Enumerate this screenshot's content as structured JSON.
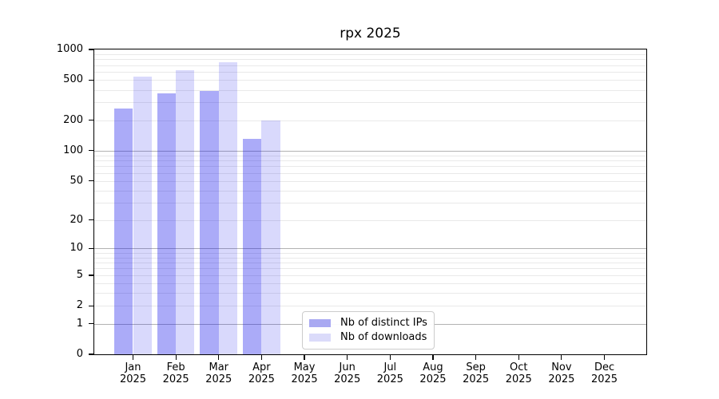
{
  "title": "rpx 2025",
  "xaxis": {
    "months": [
      "Jan",
      "Feb",
      "Mar",
      "Apr",
      "May",
      "Jun",
      "Jul",
      "Aug",
      "Sep",
      "Oct",
      "Nov",
      "Dec"
    ],
    "year": "2025"
  },
  "chart_data": {
    "type": "bar",
    "title": "rpx 2025",
    "categories": [
      "Jan 2025",
      "Feb 2025",
      "Mar 2025",
      "Apr 2025",
      "May 2025",
      "Jun 2025",
      "Jul 2025",
      "Aug 2025",
      "Sep 2025",
      "Oct 2025",
      "Nov 2025",
      "Dec 2025"
    ],
    "series": [
      {
        "name": "Nb of distinct IPs",
        "values": [
          260,
          370,
          390,
          130,
          null,
          null,
          null,
          null,
          null,
          null,
          null,
          null
        ],
        "color": "#a9a9f2",
        "fill": "rgba(13,13,235,0.35)"
      },
      {
        "name": "Nb of downloads",
        "values": [
          540,
          630,
          750,
          200,
          null,
          null,
          null,
          null,
          null,
          null,
          null,
          null
        ],
        "color": "#dbdbfa",
        "fill": "rgba(13,13,235,0.155)"
      }
    ],
    "yscale": "log(1+x)",
    "yticks": [
      0,
      1,
      2,
      5,
      10,
      20,
      50,
      100,
      200,
      500,
      1000
    ],
    "ylim": [
      0,
      1000
    ],
    "xlabel": "",
    "ylabel": "",
    "grid": {
      "axis": "y",
      "major": true,
      "minor": true,
      "major_color": "#b2b2b2",
      "minor_color": "#e9e9e9"
    },
    "legend": {
      "position": "lower center",
      "entries": [
        "Nb of distinct IPs",
        "Nb of downloads"
      ]
    }
  },
  "colors": {
    "bar_distinct_ips": "#a9a9f2",
    "bar_downloads": "#dbdbfa",
    "axis": "#000000",
    "grid_major": "#b2b2b2",
    "grid_minor": "#e9e9e9",
    "legend_border": "#cccccc",
    "background": "#ffffff"
  }
}
